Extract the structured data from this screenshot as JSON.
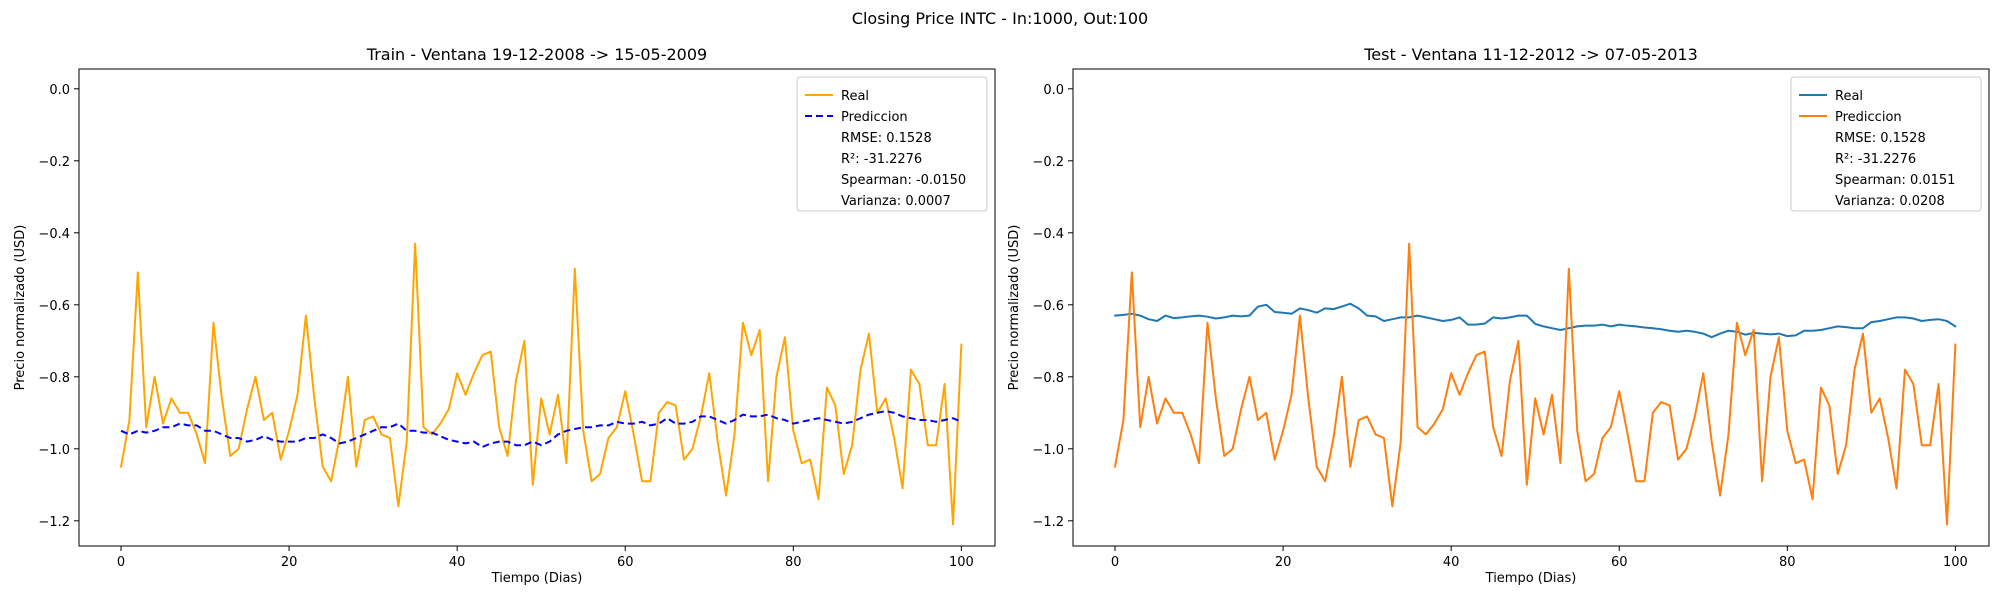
{
  "figure": {
    "title": "Closing Price INTC - In:1000, Out:100"
  },
  "colors": {
    "orange": "#ffa500",
    "blue_dashed": "#0000ff",
    "c0": "#1f77b4",
    "c1": "#ff7f0e"
  },
  "chart_data": [
    {
      "type": "line",
      "title": "Train - Ventana 19-12-2008 -> 15-05-2009",
      "xlabel": "Tiempo (Dias)",
      "ylabel": "Precio normalizado (USD)",
      "xlim": [
        -5,
        104
      ],
      "ylim": [
        -1.27,
        0.055
      ],
      "xticks": [
        0,
        20,
        40,
        60,
        80,
        100
      ],
      "yticks": [
        0.0,
        -0.2,
        -0.4,
        -0.6,
        -0.8,
        -1.0,
        -1.2
      ],
      "grid": false,
      "legend_position": "top-right",
      "series": [
        {
          "name": "Real",
          "color": "#ffa500",
          "dash": false,
          "values": [
            -1.05,
            -0.92,
            -0.51,
            -0.94,
            -0.8,
            -0.93,
            -0.86,
            -0.9,
            -0.9,
            -0.96,
            -1.04,
            -0.65,
            -0.86,
            -1.02,
            -1.0,
            -0.89,
            -0.8,
            -0.92,
            -0.9,
            -1.03,
            -0.95,
            -0.85,
            -0.63,
            -0.86,
            -1.05,
            -1.09,
            -0.97,
            -0.8,
            -1.05,
            -0.92,
            -0.91,
            -0.96,
            -0.97,
            -1.16,
            -0.98,
            -0.43,
            -0.94,
            -0.96,
            -0.93,
            -0.89,
            -0.79,
            -0.85,
            -0.79,
            -0.74,
            -0.73,
            -0.94,
            -1.02,
            -0.81,
            -0.7,
            -1.1,
            -0.86,
            -0.96,
            -0.85,
            -1.04,
            -0.5,
            -0.95,
            -1.09,
            -1.07,
            -0.97,
            -0.94,
            -0.84,
            -0.96,
            -1.09,
            -1.09,
            -0.9,
            -0.87,
            -0.88,
            -1.03,
            -1.0,
            -0.91,
            -0.79,
            -0.98,
            -1.13,
            -0.96,
            -0.65,
            -0.74,
            -0.67,
            -1.09,
            -0.8,
            -0.69,
            -0.95,
            -1.04,
            -1.03,
            -1.14,
            -0.83,
            -0.88,
            -1.07,
            -0.99,
            -0.78,
            -0.68,
            -0.9,
            -0.86,
            -0.97,
            -1.11,
            -0.78,
            -0.82,
            -0.99,
            -0.99,
            -0.82,
            -1.21,
            -0.71
          ]
        },
        {
          "name": "Prediccion",
          "color": "#0000ff",
          "dash": true,
          "values": [
            -0.95,
            -0.96,
            -0.95,
            -0.955,
            -0.95,
            -0.94,
            -0.94,
            -0.93,
            -0.935,
            -0.935,
            -0.95,
            -0.95,
            -0.96,
            -0.97,
            -0.97,
            -0.98,
            -0.975,
            -0.965,
            -0.975,
            -0.98,
            -0.98,
            -0.98,
            -0.97,
            -0.97,
            -0.96,
            -0.97,
            -0.985,
            -0.98,
            -0.97,
            -0.96,
            -0.95,
            -0.94,
            -0.94,
            -0.93,
            -0.95,
            -0.95,
            -0.955,
            -0.955,
            -0.965,
            -0.975,
            -0.98,
            -0.985,
            -0.98,
            -0.995,
            -0.985,
            -0.98,
            -0.98,
            -0.99,
            -0.99,
            -0.98,
            -0.99,
            -0.98,
            -0.96,
            -0.95,
            -0.945,
            -0.94,
            -0.94,
            -0.935,
            -0.935,
            -0.925,
            -0.93,
            -0.93,
            -0.925,
            -0.935,
            -0.93,
            -0.915,
            -0.93,
            -0.93,
            -0.925,
            -0.91,
            -0.91,
            -0.92,
            -0.93,
            -0.92,
            -0.905,
            -0.91,
            -0.91,
            -0.905,
            -0.915,
            -0.92,
            -0.93,
            -0.925,
            -0.92,
            -0.915,
            -0.92,
            -0.925,
            -0.93,
            -0.925,
            -0.915,
            -0.905,
            -0.9,
            -0.895,
            -0.9,
            -0.91,
            -0.915,
            -0.92,
            -0.92,
            -0.925,
            -0.92,
            -0.915,
            -0.925
          ]
        }
      ],
      "legend_stats": [
        "RMSE: 0.1528",
        "R²: -31.2276",
        "Spearman: -0.0150",
        "Varianza: 0.0007"
      ]
    },
    {
      "type": "line",
      "title": "Test - Ventana 11-12-2012 -> 07-05-2013",
      "xlabel": "Tiempo (Dias)",
      "ylabel": "Precio normalizado (USD)",
      "xlim": [
        -5,
        104
      ],
      "ylim": [
        -1.27,
        0.055
      ],
      "xticks": [
        0,
        20,
        40,
        60,
        80,
        100
      ],
      "yticks": [
        0.0,
        -0.2,
        -0.4,
        -0.6,
        -0.8,
        -1.0,
        -1.2
      ],
      "grid": false,
      "legend_position": "top-right",
      "series": [
        {
          "name": "Real",
          "color": "#1f77b4",
          "dash": false,
          "values": [
            -0.63,
            -0.628,
            -0.625,
            -0.63,
            -0.64,
            -0.645,
            -0.63,
            -0.637,
            -0.635,
            -0.632,
            -0.63,
            -0.633,
            -0.638,
            -0.635,
            -0.63,
            -0.632,
            -0.63,
            -0.605,
            -0.6,
            -0.62,
            -0.622,
            -0.625,
            -0.61,
            -0.615,
            -0.622,
            -0.61,
            -0.612,
            -0.605,
            -0.597,
            -0.61,
            -0.63,
            -0.632,
            -0.645,
            -0.64,
            -0.635,
            -0.635,
            -0.63,
            -0.635,
            -0.64,
            -0.645,
            -0.642,
            -0.635,
            -0.655,
            -0.655,
            -0.652,
            -0.635,
            -0.638,
            -0.635,
            -0.63,
            -0.63,
            -0.653,
            -0.66,
            -0.665,
            -0.67,
            -0.665,
            -0.66,
            -0.658,
            -0.658,
            -0.655,
            -0.66,
            -0.655,
            -0.658,
            -0.66,
            -0.663,
            -0.665,
            -0.668,
            -0.672,
            -0.675,
            -0.672,
            -0.675,
            -0.68,
            -0.69,
            -0.68,
            -0.672,
            -0.675,
            -0.683,
            -0.678,
            -0.68,
            -0.682,
            -0.68,
            -0.687,
            -0.685,
            -0.672,
            -0.672,
            -0.67,
            -0.665,
            -0.66,
            -0.662,
            -0.665,
            -0.665,
            -0.648,
            -0.645,
            -0.64,
            -0.635,
            -0.635,
            -0.638,
            -0.645,
            -0.642,
            -0.64,
            -0.645,
            -0.66
          ]
        },
        {
          "name": "Prediccion",
          "color": "#ff7f0e",
          "dash": false,
          "values": [
            -1.05,
            -0.92,
            -0.51,
            -0.94,
            -0.8,
            -0.93,
            -0.86,
            -0.9,
            -0.9,
            -0.96,
            -1.04,
            -0.65,
            -0.86,
            -1.02,
            -1.0,
            -0.89,
            -0.8,
            -0.92,
            -0.9,
            -1.03,
            -0.95,
            -0.85,
            -0.63,
            -0.86,
            -1.05,
            -1.09,
            -0.97,
            -0.8,
            -1.05,
            -0.92,
            -0.91,
            -0.96,
            -0.97,
            -1.16,
            -0.98,
            -0.43,
            -0.94,
            -0.96,
            -0.93,
            -0.89,
            -0.79,
            -0.85,
            -0.79,
            -0.74,
            -0.73,
            -0.94,
            -1.02,
            -0.81,
            -0.7,
            -1.1,
            -0.86,
            -0.96,
            -0.85,
            -1.04,
            -0.5,
            -0.95,
            -1.09,
            -1.07,
            -0.97,
            -0.94,
            -0.84,
            -0.96,
            -1.09,
            -1.09,
            -0.9,
            -0.87,
            -0.88,
            -1.03,
            -1.0,
            -0.91,
            -0.79,
            -0.98,
            -1.13,
            -0.96,
            -0.65,
            -0.74,
            -0.67,
            -1.09,
            -0.8,
            -0.69,
            -0.95,
            -1.04,
            -1.03,
            -1.14,
            -0.83,
            -0.88,
            -1.07,
            -0.99,
            -0.78,
            -0.68,
            -0.9,
            -0.86,
            -0.97,
            -1.11,
            -0.78,
            -0.82,
            -0.99,
            -0.99,
            -0.82,
            -1.21,
            -0.71
          ]
        }
      ],
      "legend_stats": [
        "RMSE: 0.1528",
        "R²: -31.2276",
        "Spearman: 0.0151",
        "Varianza: 0.0208"
      ]
    }
  ]
}
